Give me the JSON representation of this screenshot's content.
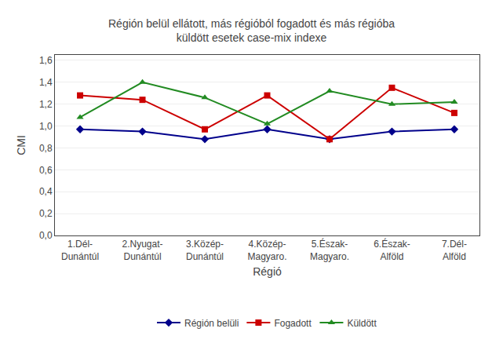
{
  "chart_data": {
    "type": "line",
    "title": "Régión belül ellátott, más régióból fogadott és más régióba\nküldött esetek case-mix indexe",
    "y_label": "CMI",
    "x_label": "Régió",
    "categories": [
      "1.Dél-\nDunántúl",
      "2.Nyugat-\nDunántúl",
      "3.Közép-\nDunántúl",
      "4.Közép-\nMagyaro.",
      "5.Észak-\nMagyaro.",
      "6.Észak-\nAlföld",
      "7.Dél-\nAlföld"
    ],
    "series": [
      {
        "name": "Régión belüli",
        "color": "#00008B",
        "marker": "diamond",
        "values": [
          0.97,
          0.95,
          0.88,
          0.97,
          0.88,
          0.95,
          0.97
        ]
      },
      {
        "name": "Fogadott",
        "color": "#CC0000",
        "marker": "square",
        "values": [
          1.28,
          1.24,
          0.97,
          1.28,
          0.88,
          1.35,
          1.12
        ]
      },
      {
        "name": "Küldött",
        "color": "#228B22",
        "marker": "triangle-up",
        "values": [
          1.08,
          1.4,
          1.26,
          1.02,
          1.32,
          1.2,
          1.22
        ]
      }
    ],
    "ylim": [
      0.0,
      1.65
    ],
    "yticks": [
      {
        "value": 0.0,
        "label": "0,0"
      },
      {
        "value": 0.2,
        "label": "0,2"
      },
      {
        "value": 0.4,
        "label": "0,4"
      },
      {
        "value": 0.6,
        "label": "0,6"
      },
      {
        "value": 0.8,
        "label": "0,8"
      },
      {
        "value": 1.0,
        "label": "1,0"
      },
      {
        "value": 1.2,
        "label": "1,2"
      },
      {
        "value": 1.4,
        "label": "1,4"
      },
      {
        "value": 1.6,
        "label": "1,6"
      }
    ],
    "grid": "y",
    "legend": "bottom"
  }
}
